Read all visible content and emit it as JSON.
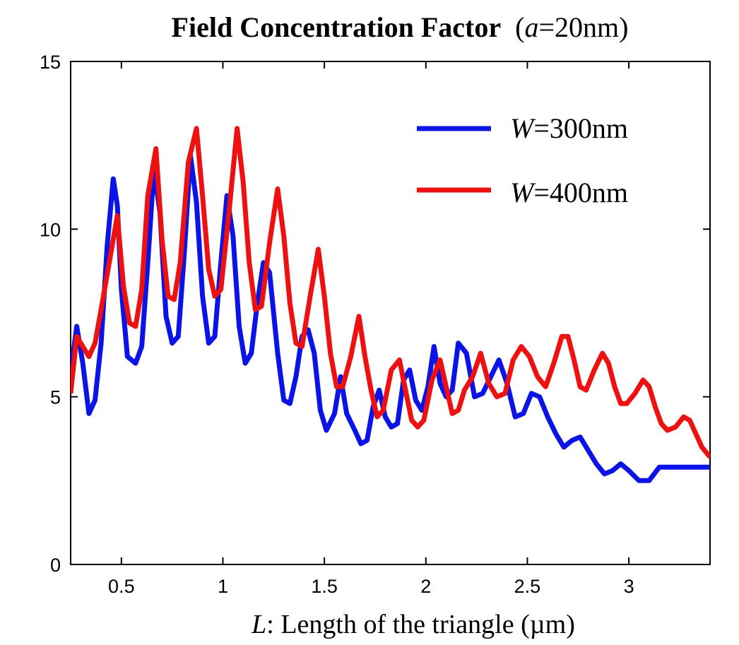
{
  "chart_data": {
    "type": "line",
    "title": {
      "main": "Field Concentration Factor",
      "paren_open": "(",
      "param": "a",
      "param_value": "=20nm)"
    },
    "xlabel": {
      "var": "L",
      "text": ": Length of the triangle (µm)"
    },
    "ylabel": "",
    "xlim": [
      0.25,
      3.4
    ],
    "ylim": [
      0,
      15
    ],
    "x_ticks": [
      {
        "value": 0.5,
        "label": "0.5"
      },
      {
        "value": 1,
        "label": "1"
      },
      {
        "value": 1.5,
        "label": "1.5"
      },
      {
        "value": 2,
        "label": "2"
      },
      {
        "value": 2.5,
        "label": "2.5"
      },
      {
        "value": 3,
        "label": "3"
      }
    ],
    "y_ticks": [
      {
        "value": 0,
        "label": "0"
      },
      {
        "value": 5,
        "label": "5"
      },
      {
        "value": 10,
        "label": "10"
      },
      {
        "value": 15,
        "label": "15"
      }
    ],
    "grid": false,
    "legend_position": "top-right",
    "series": [
      {
        "name": "W=300nm",
        "legend_var": "W",
        "legend_value": "=300nm",
        "color": "#0a14e6",
        "x": [
          0.25,
          0.28,
          0.31,
          0.34,
          0.37,
          0.4,
          0.43,
          0.46,
          0.48,
          0.5,
          0.53,
          0.57,
          0.6,
          0.63,
          0.66,
          0.69,
          0.72,
          0.75,
          0.78,
          0.81,
          0.84,
          0.87,
          0.9,
          0.93,
          0.96,
          0.99,
          1.02,
          1.05,
          1.08,
          1.11,
          1.14,
          1.17,
          1.2,
          1.23,
          1.27,
          1.3,
          1.33,
          1.36,
          1.39,
          1.42,
          1.45,
          1.48,
          1.51,
          1.55,
          1.58,
          1.61,
          1.65,
          1.68,
          1.71,
          1.74,
          1.77,
          1.8,
          1.83,
          1.86,
          1.89,
          1.92,
          1.95,
          1.98,
          2.01,
          2.04,
          2.07,
          2.1,
          2.13,
          2.16,
          2.2,
          2.24,
          2.28,
          2.32,
          2.36,
          2.4,
          2.44,
          2.48,
          2.52,
          2.56,
          2.6,
          2.64,
          2.68,
          2.72,
          2.76,
          2.8,
          2.84,
          2.88,
          2.92,
          2.96,
          3.0,
          3.05,
          3.1,
          3.15,
          3.2,
          3.25,
          3.3,
          3.35,
          3.4
        ],
        "values": [
          5.7,
          7.1,
          6.0,
          4.5,
          4.9,
          6.6,
          9.5,
          11.5,
          10.7,
          8.2,
          6.2,
          6.0,
          6.5,
          9.0,
          11.8,
          10.5,
          7.4,
          6.6,
          6.8,
          9.3,
          12.2,
          10.8,
          8.0,
          6.6,
          6.8,
          9.0,
          11.0,
          9.8,
          7.1,
          6.0,
          6.3,
          7.8,
          9.0,
          8.7,
          6.3,
          4.9,
          4.8,
          5.6,
          6.8,
          7.0,
          6.3,
          4.6,
          4.0,
          4.5,
          5.6,
          4.5,
          4.0,
          3.6,
          3.7,
          4.7,
          5.2,
          4.4,
          4.1,
          4.2,
          5.5,
          5.8,
          4.9,
          4.6,
          5.3,
          6.5,
          5.4,
          5.0,
          5.2,
          6.6,
          6.3,
          5.0,
          5.1,
          5.6,
          6.1,
          5.4,
          4.4,
          4.5,
          5.1,
          5.0,
          4.4,
          3.9,
          3.5,
          3.7,
          3.8,
          3.4,
          3.0,
          2.7,
          2.8,
          3.0,
          2.8,
          2.5,
          2.5,
          2.9,
          2.9,
          2.9,
          2.9,
          2.9,
          2.9
        ],
        "visible_end_x": 3.4
      },
      {
        "name": "W=400nm",
        "legend_var": "W",
        "legend_value": "=400nm",
        "color": "#ee1111",
        "x": [
          0.25,
          0.28,
          0.31,
          0.34,
          0.37,
          0.4,
          0.44,
          0.48,
          0.51,
          0.54,
          0.57,
          0.6,
          0.63,
          0.67,
          0.7,
          0.73,
          0.76,
          0.79,
          0.83,
          0.87,
          0.9,
          0.93,
          0.96,
          0.99,
          1.03,
          1.07,
          1.1,
          1.13,
          1.16,
          1.19,
          1.23,
          1.27,
          1.3,
          1.33,
          1.36,
          1.39,
          1.43,
          1.47,
          1.5,
          1.53,
          1.56,
          1.59,
          1.63,
          1.67,
          1.7,
          1.73,
          1.76,
          1.79,
          1.83,
          1.87,
          1.9,
          1.93,
          1.96,
          1.99,
          2.03,
          2.07,
          2.1,
          2.13,
          2.16,
          2.19,
          2.23,
          2.27,
          2.31,
          2.35,
          2.39,
          2.43,
          2.47,
          2.51,
          2.55,
          2.59,
          2.63,
          2.67,
          2.7,
          2.73,
          2.76,
          2.79,
          2.83,
          2.87,
          2.9,
          2.93,
          2.96,
          2.99,
          3.03,
          3.07,
          3.1,
          3.13,
          3.16,
          3.19,
          3.23,
          3.27,
          3.3,
          3.33,
          3.36,
          3.4
        ],
        "values": [
          5.1,
          6.8,
          6.5,
          6.2,
          6.6,
          7.6,
          9.0,
          10.4,
          8.3,
          7.2,
          7.1,
          8.2,
          11.0,
          12.4,
          9.7,
          8.0,
          7.9,
          9.0,
          12.0,
          13.0,
          11.0,
          8.8,
          8.0,
          8.2,
          10.5,
          13.0,
          11.4,
          9.0,
          7.6,
          7.7,
          9.6,
          11.2,
          9.8,
          7.8,
          6.6,
          6.5,
          8.0,
          9.4,
          8.0,
          6.3,
          5.3,
          5.3,
          6.2,
          7.4,
          6.2,
          5.2,
          4.4,
          4.6,
          5.8,
          6.1,
          5.2,
          4.3,
          4.1,
          4.3,
          5.5,
          6.1,
          5.3,
          4.5,
          4.6,
          5.2,
          5.6,
          6.3,
          5.4,
          5.0,
          5.1,
          6.1,
          6.5,
          6.2,
          5.6,
          5.3,
          6.0,
          6.8,
          6.8,
          6.1,
          5.3,
          5.2,
          5.8,
          6.3,
          6.0,
          5.3,
          4.8,
          4.8,
          5.1,
          5.5,
          5.3,
          4.7,
          4.2,
          4.0,
          4.1,
          4.4,
          4.3,
          3.9,
          3.5,
          3.2
        ],
        "visible_end_x": 3.4
      }
    ]
  }
}
